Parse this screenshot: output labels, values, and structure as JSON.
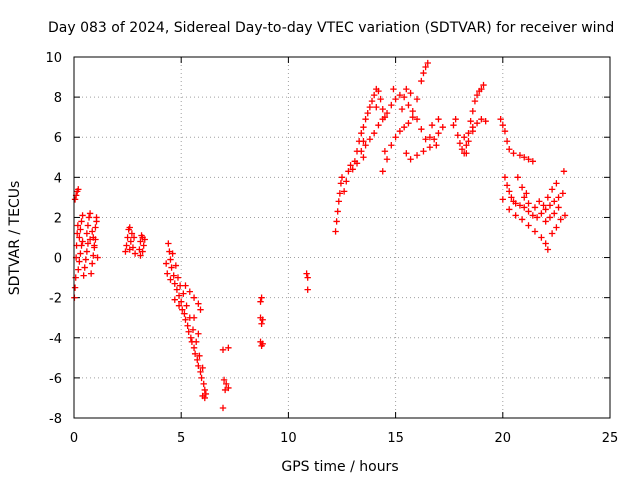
{
  "chart_data": {
    "type": "scatter",
    "title": "Day 083 of 2024, Sidereal Day-to-day VTEC variation (SDTVAR) for receiver wind",
    "xlabel": "GPS time / hours",
    "ylabel": "SDTVAR / TECUs",
    "xlim": [
      0,
      25
    ],
    "ylim": [
      -8,
      10
    ],
    "xticks": [
      "0",
      "5",
      "10",
      "15",
      "20",
      "25"
    ],
    "yticks": [
      "-8",
      "-6",
      "-4",
      "-2",
      "0",
      "2",
      "4",
      "6",
      "8",
      "10"
    ],
    "grid": true,
    "marker": "+",
    "color": "#ff0000",
    "series": [
      {
        "name": "SDTVAR",
        "points": [
          [
            0.02,
            -2.0
          ],
          [
            0.05,
            -1.5
          ],
          [
            0.08,
            -1.0
          ],
          [
            0.1,
            0.0
          ],
          [
            0.12,
            0.6
          ],
          [
            0.15,
            1.2
          ],
          [
            0.18,
            1.6
          ],
          [
            0.05,
            2.9
          ],
          [
            0.1,
            3.1
          ],
          [
            0.15,
            3.3
          ],
          [
            0.2,
            3.4
          ],
          [
            0.2,
            -0.6
          ],
          [
            0.25,
            -0.2
          ],
          [
            0.3,
            0.2
          ],
          [
            0.35,
            0.6
          ],
          [
            0.4,
            0.8
          ],
          [
            0.25,
            1.0
          ],
          [
            0.3,
            1.4
          ],
          [
            0.35,
            1.8
          ],
          [
            0.4,
            2.1
          ],
          [
            0.45,
            -0.9
          ],
          [
            0.5,
            -0.5
          ],
          [
            0.55,
            -0.1
          ],
          [
            0.6,
            0.3
          ],
          [
            0.65,
            0.7
          ],
          [
            0.6,
            1.2
          ],
          [
            0.65,
            1.6
          ],
          [
            0.7,
            2.0
          ],
          [
            0.75,
            2.2
          ],
          [
            0.8,
            -0.8
          ],
          [
            0.85,
            -0.3
          ],
          [
            0.9,
            0.1
          ],
          [
            0.95,
            0.5
          ],
          [
            1.0,
            0.9
          ],
          [
            0.85,
            1.3
          ],
          [
            0.9,
            1.0
          ],
          [
            0.95,
            0.6
          ],
          [
            1.0,
            1.5
          ],
          [
            1.05,
            1.8
          ],
          [
            1.05,
            2.0
          ],
          [
            1.1,
            0.0
          ],
          [
            0.75,
            0.9
          ],
          [
            2.4,
            0.3
          ],
          [
            2.45,
            0.6
          ],
          [
            2.5,
            1.0
          ],
          [
            2.55,
            1.4
          ],
          [
            2.6,
            0.4
          ],
          [
            2.65,
            0.8
          ],
          [
            2.7,
            1.2
          ],
          [
            2.75,
            0.5
          ],
          [
            2.8,
            1.0
          ],
          [
            2.85,
            0.2
          ],
          [
            2.6,
            1.5
          ],
          [
            3.05,
            0.4
          ],
          [
            3.1,
            0.8
          ],
          [
            3.15,
            1.1
          ],
          [
            3.2,
            0.3
          ],
          [
            3.25,
            0.6
          ],
          [
            3.3,
            0.9
          ],
          [
            3.1,
            0.1
          ],
          [
            3.2,
            1.0
          ],
          [
            4.4,
            0.7
          ],
          [
            4.45,
            0.3
          ],
          [
            4.5,
            -0.1
          ],
          [
            4.55,
            -0.5
          ],
          [
            4.6,
            0.2
          ],
          [
            4.65,
            -0.9
          ],
          [
            4.7,
            -1.3
          ],
          [
            4.75,
            -0.4
          ],
          [
            4.8,
            -1.6
          ],
          [
            4.85,
            -1.0
          ],
          [
            4.9,
            -1.9
          ],
          [
            4.95,
            -1.4
          ],
          [
            5.0,
            -2.2
          ],
          [
            5.05,
            -2.6
          ],
          [
            5.1,
            -1.8
          ],
          [
            5.15,
            -2.8
          ],
          [
            5.2,
            -3.1
          ],
          [
            5.25,
            -2.4
          ],
          [
            5.3,
            -3.4
          ],
          [
            5.35,
            -3.7
          ],
          [
            5.4,
            -3.0
          ],
          [
            5.45,
            -4.0
          ],
          [
            5.5,
            -4.2
          ],
          [
            5.55,
            -3.6
          ],
          [
            5.6,
            -4.5
          ],
          [
            5.65,
            -4.8
          ],
          [
            5.7,
            -4.2
          ],
          [
            5.75,
            -5.1
          ],
          [
            5.8,
            -5.4
          ],
          [
            5.85,
            -4.9
          ],
          [
            5.9,
            -5.7
          ],
          [
            5.95,
            -6.0
          ],
          [
            6.0,
            -5.5
          ],
          [
            6.05,
            -6.3
          ],
          [
            6.1,
            -6.6
          ],
          [
            6.1,
            -7.0
          ],
          [
            6.15,
            -6.8
          ],
          [
            5.2,
            -1.4
          ],
          [
            5.4,
            -1.7
          ],
          [
            5.6,
            -2.0
          ],
          [
            5.8,
            -2.3
          ],
          [
            5.9,
            -2.6
          ],
          [
            4.3,
            -0.3
          ],
          [
            4.35,
            -0.8
          ],
          [
            4.5,
            -1.1
          ],
          [
            4.7,
            -2.1
          ],
          [
            4.9,
            -2.4
          ],
          [
            5.6,
            -3.0
          ],
          [
            5.8,
            -3.8
          ],
          [
            6.0,
            -6.9
          ],
          [
            6.95,
            -4.6
          ],
          [
            7.0,
            -6.1
          ],
          [
            7.05,
            -6.6
          ],
          [
            6.95,
            -7.5
          ],
          [
            7.1,
            -6.3
          ],
          [
            7.2,
            -4.5
          ],
          [
            7.2,
            -6.5
          ],
          [
            8.7,
            -2.2
          ],
          [
            8.75,
            -2.0
          ],
          [
            8.7,
            -3.0
          ],
          [
            8.75,
            -3.3
          ],
          [
            8.8,
            -3.1
          ],
          [
            8.7,
            -4.2
          ],
          [
            8.75,
            -4.4
          ],
          [
            8.8,
            -4.3
          ],
          [
            10.85,
            -0.8
          ],
          [
            10.9,
            -1.0
          ],
          [
            10.9,
            -1.6
          ],
          [
            12.2,
            1.3
          ],
          [
            12.25,
            1.8
          ],
          [
            12.3,
            2.3
          ],
          [
            12.35,
            2.8
          ],
          [
            12.4,
            3.2
          ],
          [
            12.45,
            3.7
          ],
          [
            12.5,
            4.0
          ],
          [
            12.6,
            3.3
          ],
          [
            12.7,
            3.8
          ],
          [
            12.8,
            4.3
          ],
          [
            12.9,
            4.6
          ],
          [
            13.0,
            4.4
          ],
          [
            13.1,
            4.8
          ],
          [
            13.2,
            5.3
          ],
          [
            13.3,
            5.8
          ],
          [
            13.4,
            6.2
          ],
          [
            13.5,
            6.5
          ],
          [
            13.6,
            6.9
          ],
          [
            13.7,
            7.2
          ],
          [
            13.8,
            7.5
          ],
          [
            13.9,
            7.8
          ],
          [
            14.0,
            8.1
          ],
          [
            14.1,
            8.4
          ],
          [
            14.2,
            8.3
          ],
          [
            14.3,
            7.9
          ],
          [
            14.4,
            7.4
          ],
          [
            14.5,
            7.0
          ],
          [
            13.4,
            5.3
          ],
          [
            13.6,
            5.6
          ],
          [
            13.8,
            5.9
          ],
          [
            14.0,
            6.2
          ],
          [
            14.2,
            6.6
          ],
          [
            14.4,
            6.9
          ],
          [
            13.2,
            4.7
          ],
          [
            13.5,
            5.0
          ],
          [
            14.6,
            7.2
          ],
          [
            14.8,
            7.6
          ],
          [
            15.0,
            7.9
          ],
          [
            15.2,
            8.1
          ],
          [
            15.4,
            8.0
          ],
          [
            15.6,
            7.6
          ],
          [
            15.8,
            7.3
          ],
          [
            16.0,
            7.9
          ],
          [
            16.2,
            8.8
          ],
          [
            16.3,
            9.2
          ],
          [
            16.4,
            9.5
          ],
          [
            16.5,
            9.7
          ],
          [
            15.5,
            8.4
          ],
          [
            15.7,
            8.2
          ],
          [
            14.5,
            5.3
          ],
          [
            14.6,
            4.9
          ],
          [
            14.8,
            5.6
          ],
          [
            15.0,
            6.0
          ],
          [
            15.2,
            6.3
          ],
          [
            15.4,
            6.5
          ],
          [
            15.6,
            6.7
          ],
          [
            15.8,
            7.0
          ],
          [
            16.0,
            6.9
          ],
          [
            16.2,
            6.4
          ],
          [
            16.4,
            5.9
          ],
          [
            16.6,
            5.5
          ],
          [
            16.8,
            5.9
          ],
          [
            17.0,
            6.2
          ],
          [
            17.2,
            6.5
          ],
          [
            14.4,
            4.3
          ],
          [
            15.5,
            5.2
          ],
          [
            15.7,
            4.9
          ],
          [
            16.0,
            5.1
          ],
          [
            16.3,
            5.3
          ],
          [
            16.6,
            6.0
          ],
          [
            16.9,
            5.6
          ],
          [
            13.5,
            5.8
          ],
          [
            14.1,
            7.5
          ],
          [
            14.9,
            8.4
          ],
          [
            15.3,
            7.4
          ],
          [
            16.7,
            6.6
          ],
          [
            17.0,
            6.9
          ],
          [
            17.7,
            6.6
          ],
          [
            17.8,
            6.9
          ],
          [
            17.9,
            6.1
          ],
          [
            18.0,
            5.7
          ],
          [
            18.1,
            5.4
          ],
          [
            18.2,
            5.2
          ],
          [
            18.3,
            5.6
          ],
          [
            18.4,
            6.2
          ],
          [
            18.5,
            6.8
          ],
          [
            18.6,
            7.3
          ],
          [
            18.7,
            7.8
          ],
          [
            18.8,
            8.1
          ],
          [
            18.9,
            8.3
          ],
          [
            19.0,
            8.4
          ],
          [
            19.1,
            8.6
          ],
          [
            18.6,
            6.5
          ],
          [
            18.8,
            6.7
          ],
          [
            19.0,
            6.9
          ],
          [
            19.2,
            6.8
          ],
          [
            18.2,
            6.0
          ],
          [
            18.4,
            5.8
          ],
          [
            18.6,
            6.3
          ],
          [
            18.3,
            5.2
          ],
          [
            19.9,
            6.9
          ],
          [
            20.0,
            6.6
          ],
          [
            20.1,
            6.3
          ],
          [
            20.2,
            5.8
          ],
          [
            20.3,
            5.4
          ],
          [
            20.5,
            5.2
          ],
          [
            20.8,
            5.1
          ],
          [
            21.0,
            5.0
          ],
          [
            21.2,
            4.9
          ],
          [
            21.4,
            4.8
          ],
          [
            20.1,
            4.0
          ],
          [
            20.2,
            3.6
          ],
          [
            20.3,
            3.3
          ],
          [
            20.4,
            3.0
          ],
          [
            20.5,
            2.8
          ],
          [
            20.6,
            2.7
          ],
          [
            20.8,
            2.6
          ],
          [
            21.0,
            2.5
          ],
          [
            21.2,
            2.3
          ],
          [
            21.4,
            2.1
          ],
          [
            21.6,
            2.0
          ],
          [
            21.8,
            2.2
          ],
          [
            22.0,
            2.4
          ],
          [
            22.2,
            2.6
          ],
          [
            22.4,
            2.8
          ],
          [
            22.6,
            3.0
          ],
          [
            22.8,
            3.2
          ],
          [
            22.85,
            4.3
          ],
          [
            20.0,
            2.9
          ],
          [
            20.3,
            2.4
          ],
          [
            20.6,
            2.1
          ],
          [
            20.9,
            1.9
          ],
          [
            21.2,
            1.6
          ],
          [
            21.5,
            1.3
          ],
          [
            21.8,
            1.0
          ],
          [
            22.0,
            0.7
          ],
          [
            22.1,
            0.4
          ],
          [
            22.3,
            1.2
          ],
          [
            22.5,
            1.5
          ],
          [
            22.7,
            1.9
          ],
          [
            22.9,
            2.1
          ],
          [
            22.0,
            1.8
          ],
          [
            22.2,
            2.0
          ],
          [
            22.4,
            2.2
          ],
          [
            22.6,
            2.5
          ],
          [
            21.9,
            2.6
          ],
          [
            22.1,
            3.0
          ],
          [
            22.3,
            3.4
          ],
          [
            22.5,
            3.7
          ],
          [
            21.0,
            3.0
          ],
          [
            21.2,
            2.7
          ],
          [
            21.5,
            2.5
          ],
          [
            21.7,
            2.8
          ],
          [
            20.7,
            4.0
          ],
          [
            20.9,
            3.5
          ],
          [
            21.1,
            3.2
          ]
        ]
      }
    ]
  }
}
